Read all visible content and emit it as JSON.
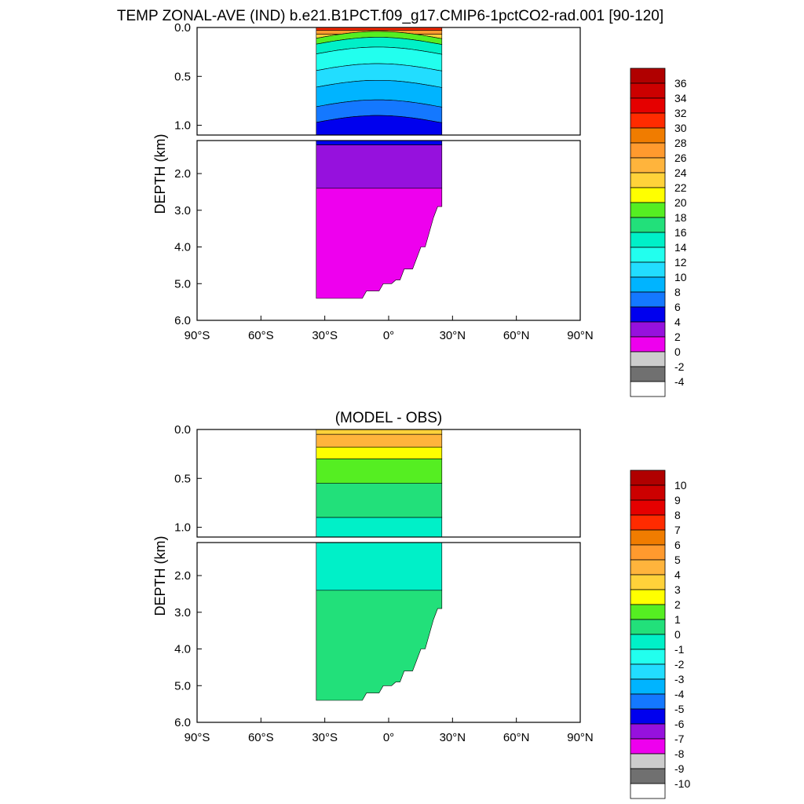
{
  "figure_title": "TEMP ZONAL-AVE (IND) b.e21.B1PCT.f09_g17.CMIP6-1pctCO2-rad.001 [90-120]",
  "chart_data": [
    {
      "type": "heatmap",
      "title": "",
      "xlabel": "",
      "ylabel": "DEPTH (km)",
      "xlim": [
        -90,
        90
      ],
      "ylim_depth_km": [
        6.0,
        0.0
      ],
      "x_tick_labels": [
        "90°S",
        "60°S",
        "30°S",
        "0°",
        "30°N",
        "60°N",
        "90°N"
      ],
      "y_tick_labels_upper": [
        "0.0",
        "0.5",
        "1.0"
      ],
      "y_tick_labels_lower": [
        "2.0",
        "3.0",
        "4.0",
        "5.0",
        "6.0"
      ],
      "colorbar_labels": [
        "36",
        "34",
        "32",
        "30",
        "28",
        "26",
        "24",
        "22",
        "20",
        "18",
        "16",
        "14",
        "12",
        "10",
        "8",
        "6",
        "4",
        "2",
        "0",
        "-2",
        "-4"
      ],
      "colorbar_colors": [
        "#b00000",
        "#cc0000",
        "#e50000",
        "#ff2b00",
        "#f07c00",
        "#ff9a2e",
        "#ffb43c",
        "#ffd23a",
        "#ffff00",
        "#55ee22",
        "#22e07a",
        "#00f0c8",
        "#22ffee",
        "#22ddff",
        "#00b4ff",
        "#1478ff",
        "#0000ee",
        "#9611dd",
        "#ee00ee",
        "#cccccc",
        "#707070",
        "#ffffff"
      ],
      "x_extent_lat": [
        -34,
        25
      ]
    },
    {
      "type": "heatmap",
      "title": "(MODEL - OBS)",
      "xlabel": "",
      "ylabel": "DEPTH (km)",
      "xlim": [
        -90,
        90
      ],
      "ylim_depth_km": [
        6.0,
        0.0
      ],
      "x_tick_labels": [
        "90°S",
        "60°S",
        "30°S",
        "0°",
        "30°N",
        "60°N",
        "90°N"
      ],
      "y_tick_labels_upper": [
        "0.0",
        "0.5",
        "1.0"
      ],
      "y_tick_labels_lower": [
        "2.0",
        "3.0",
        "4.0",
        "5.0",
        "6.0"
      ],
      "colorbar_labels": [
        "10",
        "9",
        "8",
        "7",
        "6",
        "5",
        "4",
        "3",
        "2",
        "1",
        "0",
        "-1",
        "-2",
        "-3",
        "-4",
        "-5",
        "-6",
        "-7",
        "-8",
        "-9",
        "-10"
      ],
      "colorbar_colors": [
        "#b00000",
        "#cc0000",
        "#e50000",
        "#ff2b00",
        "#f07c00",
        "#ff9a2e",
        "#ffb43c",
        "#ffd23a",
        "#ffff00",
        "#55ee22",
        "#22e07a",
        "#00f0c8",
        "#22ffee",
        "#22ddff",
        "#00b4ff",
        "#1478ff",
        "#0000ee",
        "#9611dd",
        "#ee00ee",
        "#cccccc",
        "#707070",
        "#ffffff"
      ],
      "x_extent_lat": [
        -34,
        25
      ]
    }
  ]
}
